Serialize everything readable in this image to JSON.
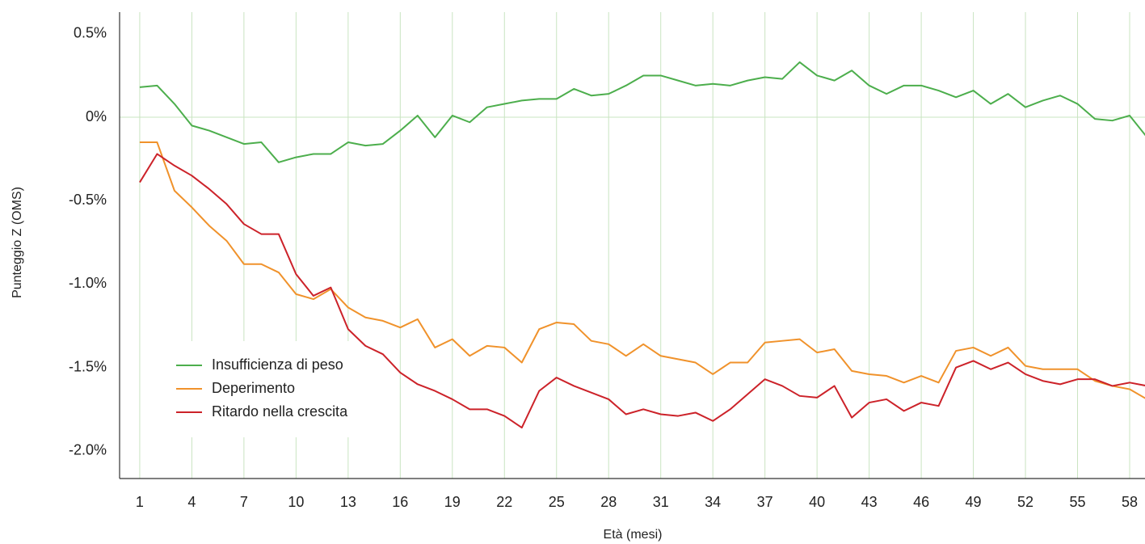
{
  "chart_data": {
    "type": "line",
    "x_label": "Età (mesi)",
    "y_label": "Punteggio Z (OMS)",
    "x": [
      1,
      2,
      3,
      4,
      5,
      6,
      7,
      8,
      9,
      10,
      11,
      12,
      13,
      14,
      15,
      16,
      17,
      18,
      19,
      20,
      21,
      22,
      23,
      24,
      25,
      26,
      27,
      28,
      29,
      30,
      31,
      32,
      33,
      34,
      35,
      36,
      37,
      38,
      39,
      40,
      41,
      42,
      43,
      44,
      45,
      46,
      47,
      48,
      49,
      50,
      51,
      52,
      53,
      54,
      55,
      56,
      57,
      58,
      59
    ],
    "series": [
      {
        "name": "Insufficienza di peso",
        "color": "#4cae4c",
        "values": [
          0.18,
          0.19,
          0.08,
          -0.05,
          -0.08,
          -0.12,
          -0.16,
          -0.15,
          -0.27,
          -0.24,
          -0.22,
          -0.22,
          -0.15,
          -0.17,
          -0.16,
          -0.08,
          0.01,
          -0.12,
          0.01,
          -0.03,
          0.06,
          0.08,
          0.1,
          0.11,
          0.11,
          0.17,
          0.13,
          0.14,
          0.19,
          0.25,
          0.25,
          0.22,
          0.19,
          0.2,
          0.19,
          0.22,
          0.24,
          0.23,
          0.33,
          0.25,
          0.22,
          0.28,
          0.19,
          0.14,
          0.19,
          0.19,
          0.16,
          0.12,
          0.16,
          0.08,
          0.14,
          0.06,
          0.1,
          0.13,
          0.08,
          -0.01,
          -0.02,
          0.01,
          -0.12
        ]
      },
      {
        "name": "Deperimento",
        "color": "#f0922b",
        "values": [
          -0.15,
          -0.15,
          -0.44,
          -0.54,
          -0.65,
          -0.74,
          -0.88,
          -0.88,
          -0.93,
          -1.06,
          -1.09,
          -1.03,
          -1.14,
          -1.2,
          -1.22,
          -1.26,
          -1.21,
          -1.38,
          -1.33,
          -1.43,
          -1.37,
          -1.38,
          -1.47,
          -1.27,
          -1.23,
          -1.24,
          -1.34,
          -1.36,
          -1.43,
          -1.36,
          -1.43,
          -1.45,
          -1.47,
          -1.54,
          -1.47,
          -1.47,
          -1.35,
          -1.34,
          -1.33,
          -1.41,
          -1.39,
          -1.52,
          -1.54,
          -1.55,
          -1.59,
          -1.55,
          -1.59,
          -1.4,
          -1.38,
          -1.43,
          -1.38,
          -1.49,
          -1.51,
          -1.51,
          -1.51,
          -1.58,
          -1.61,
          -1.63,
          -1.69
        ]
      },
      {
        "name": "Ritardo nella crescita",
        "color": "#cc2229",
        "values": [
          -0.39,
          -0.22,
          -0.29,
          -0.35,
          -0.43,
          -0.52,
          -0.64,
          -0.7,
          -0.7,
          -0.94,
          -1.07,
          -1.02,
          -1.27,
          -1.37,
          -1.42,
          -1.53,
          -1.6,
          -1.64,
          -1.69,
          -1.75,
          -1.75,
          -1.79,
          -1.86,
          -1.64,
          -1.56,
          -1.61,
          -1.65,
          -1.69,
          -1.78,
          -1.75,
          -1.78,
          -1.79,
          -1.77,
          -1.82,
          -1.75,
          -1.66,
          -1.57,
          -1.61,
          -1.67,
          -1.68,
          -1.61,
          -1.8,
          -1.71,
          -1.69,
          -1.76,
          -1.71,
          -1.73,
          -1.5,
          -1.46,
          -1.51,
          -1.47,
          -1.54,
          -1.58,
          -1.6,
          -1.57,
          -1.57,
          -1.61,
          -1.59,
          -1.61
        ]
      }
    ],
    "xlim": [
      -0.16,
      59
    ],
    "ylim": [
      -2.165,
      0.63
    ],
    "xticks": [
      1,
      4,
      7,
      10,
      13,
      16,
      19,
      22,
      25,
      28,
      31,
      34,
      37,
      40,
      43,
      46,
      49,
      52,
      55,
      58
    ],
    "yticks": [
      {
        "value": 0.5,
        "label": "0.5%"
      },
      {
        "value": 0,
        "label": "0%"
      },
      {
        "value": -0.5,
        "label": "-0.5%"
      },
      {
        "value": -1.0,
        "label": "-1.0%"
      },
      {
        "value": -1.5,
        "label": "-1.5%"
      },
      {
        "value": -2.0,
        "label": "-2.0%"
      }
    ],
    "grid": true,
    "legend": "lower left"
  }
}
